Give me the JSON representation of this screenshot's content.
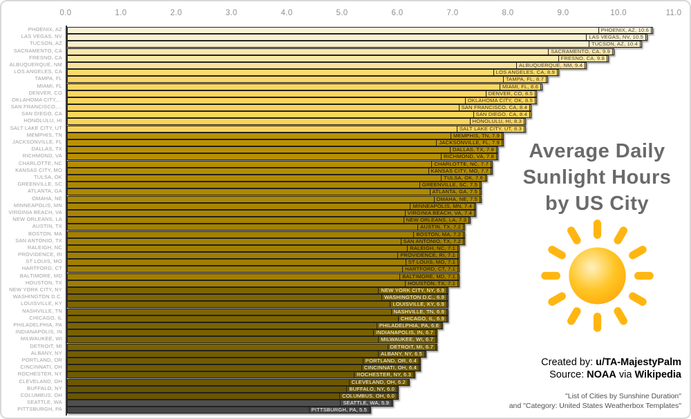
{
  "title": {
    "lines": [
      "Average Daily",
      "Sunlight Hours",
      "by US City"
    ],
    "color": "#6a6a6a"
  },
  "credits": {
    "created_by_label": "Created by: ",
    "created_by_value": "u/TA-MajestyPalm",
    "source_label": "Source: ",
    "source_noaa": "NOAA",
    "via": " via ",
    "wikipedia": "Wikipedia",
    "footnote_line1": "\"List of Cities by Sunshine Duration\"",
    "footnote_line2": "and \"Category: United States Weatherbox Templates\""
  },
  "icons": {
    "sun": {
      "name": "sun-icon",
      "ray_color": "#ffb612",
      "core_light": "#fff0bf",
      "core_mid": "#ffc525",
      "core_edge": "#ffa70a"
    }
  },
  "chart_data": {
    "type": "bar",
    "orientation": "horizontal",
    "title": "Average Daily Sunlight Hours by US City",
    "xlabel": "",
    "ylabel": "",
    "xlim": [
      0,
      11
    ],
    "grid": false,
    "x_ticks": [
      "0.0",
      "1.0",
      "2.0",
      "3.0",
      "4.0",
      "5.0",
      "6.0",
      "7.0",
      "8.0",
      "9.0",
      "10.0",
      "11.0"
    ],
    "bar_border_color": "#222222",
    "cities": [
      {
        "city": "PHOENIX, AZ",
        "value": 10.6,
        "color": "#f9f0d6",
        "text": "#4a4636"
      },
      {
        "city": "LAS VEGAS, NV",
        "value": 10.5,
        "color": "#f9efd1",
        "text": "#4a4636"
      },
      {
        "city": "TUCSON, AZ",
        "value": 10.4,
        "color": "#f8edca",
        "text": "#4a4636"
      },
      {
        "city": "SACRAMENTO, CA",
        "value": 9.9,
        "color": "#fae8ab",
        "text": "#4a4636"
      },
      {
        "city": "FRESNO, CA",
        "value": 9.8,
        "color": "#fae7a6",
        "text": "#4a4636"
      },
      {
        "city": "ALBUQUERQUE, NM",
        "value": 9.4,
        "color": "#fae199",
        "text": "#4a4636"
      },
      {
        "city": "LOS ANGELES, CA",
        "value": 8.9,
        "color": "#fcd96c",
        "text": "#3e3a26"
      },
      {
        "city": "TAMPA, FL",
        "value": 8.7,
        "color": "#fbd765",
        "text": "#3e3a26"
      },
      {
        "city": "MIAMI, FL",
        "value": 8.6,
        "color": "#fbd661",
        "text": "#3e3a26"
      },
      {
        "city": "DENVER, CO",
        "value": 8.5,
        "color": "#fbd55e",
        "text": "#3e3a26"
      },
      {
        "city": "OKLAHOMA CITY, OK",
        "axis": "OKLAHOMA CITY,…",
        "value": 8.5,
        "color": "#fbd55e",
        "text": "#3e3a26"
      },
      {
        "city": "SAN FRANCISCO, CA",
        "axis": "SAN FRANCISCO,…",
        "value": 8.4,
        "color": "#fbd45b",
        "text": "#3e3a26"
      },
      {
        "city": "SAN DIEGO, CA",
        "value": 8.4,
        "color": "#fbd45b",
        "text": "#3e3a26"
      },
      {
        "city": "HONOLULU, HI",
        "value": 8.3,
        "color": "#fbd358",
        "text": "#3e3a26"
      },
      {
        "city": "SALT LAKE CITY, UT",
        "value": 8.3,
        "color": "#fbd358",
        "text": "#3e3a26"
      },
      {
        "city": "MEMPHIS, TN",
        "value": 7.9,
        "color": "#bb9202",
        "text": "#181200"
      },
      {
        "city": "JACKSONVILLE, FL",
        "value": 7.9,
        "color": "#bb9202",
        "text": "#181200"
      },
      {
        "city": "DALLAS, TX",
        "value": 7.8,
        "color": "#b78f00",
        "text": "#181200"
      },
      {
        "city": "RICHMOND, VA",
        "value": 7.8,
        "color": "#b78f00",
        "text": "#181200"
      },
      {
        "city": "CHARLOTTE, NC",
        "value": 7.7,
        "color": "#b48d00",
        "text": "#181200"
      },
      {
        "city": "KANSAS CITY, MO",
        "value": 7.7,
        "color": "#b48d00",
        "text": "#181200"
      },
      {
        "city": "TULSA, OK",
        "value": 7.6,
        "color": "#b08a00",
        "text": "#181200"
      },
      {
        "city": "GREENVILLE, SC",
        "value": 7.5,
        "color": "#ad8800",
        "text": "#181200"
      },
      {
        "city": "ATLANTA, GA",
        "value": 7.5,
        "color": "#ad8800",
        "text": "#181200"
      },
      {
        "city": "OMAHA, NE",
        "value": 7.5,
        "color": "#ad8800",
        "text": "#181200"
      },
      {
        "city": "MINNEAPOLIS, MN",
        "value": 7.4,
        "color": "#aa8500",
        "text": "#181200"
      },
      {
        "city": "VIRGINIA BEACH, VA",
        "value": 7.4,
        "color": "#aa8500",
        "text": "#181200"
      },
      {
        "city": "NEW ORLEANS, LA",
        "value": 7.3,
        "color": "#a68300",
        "text": "#181200"
      },
      {
        "city": "AUSTIN, TX",
        "value": 7.2,
        "color": "#a38100",
        "text": "#181200"
      },
      {
        "city": "BOSTON, MA",
        "value": 7.2,
        "color": "#a38100",
        "text": "#181200"
      },
      {
        "city": "SAN ANTONIO, TX",
        "value": 7.2,
        "color": "#a38100",
        "text": "#181200"
      },
      {
        "city": "RALEIGH, NC",
        "value": 7.1,
        "color": "#a07e00",
        "text": "#181200"
      },
      {
        "city": "PROVIDENCE, RI",
        "value": 7.1,
        "color": "#a07e00",
        "text": "#181200"
      },
      {
        "city": "ST LOUIS, MO",
        "value": 7.1,
        "color": "#a07e00",
        "text": "#181200"
      },
      {
        "city": "HARTFORD, CT",
        "value": 7.1,
        "color": "#a07e00",
        "text": "#181200"
      },
      {
        "city": "BALTIMORE, MD",
        "value": 7.1,
        "color": "#a07e00",
        "text": "#181200"
      },
      {
        "city": "HOUSTON, TX",
        "value": 7.1,
        "color": "#a07e00",
        "text": "#181200"
      },
      {
        "city": "NEW YORK CITY, NY",
        "value": 6.9,
        "color": "#7e6500",
        "text": "#ffffff"
      },
      {
        "city": "WASHINGTON D.C.",
        "value": 6.9,
        "color": "#7e6500",
        "text": "#ffffff"
      },
      {
        "city": "LOUISVILLE, KY",
        "value": 6.9,
        "color": "#7e6500",
        "text": "#ffffff"
      },
      {
        "city": "NASHVILLE, TN",
        "value": 6.9,
        "color": "#7e6500",
        "text": "#ffffff"
      },
      {
        "city": "CHICAGO, IL",
        "value": 6.9,
        "color": "#7e6500",
        "text": "#ffffff"
      },
      {
        "city": "PHILADELPHIA, PA",
        "value": 6.8,
        "color": "#7b6300",
        "text": "#ffffff"
      },
      {
        "city": "INDIANAPOLIS, IN",
        "value": 6.7,
        "color": "#786100",
        "text": "#ffffff"
      },
      {
        "city": "MILWAUKEE, WI",
        "value": 6.7,
        "color": "#786100",
        "text": "#ffffff"
      },
      {
        "city": "DETROIT, MI",
        "value": 6.7,
        "color": "#786100",
        "text": "#ffffff"
      },
      {
        "city": "ALBANY, NY",
        "value": 6.5,
        "color": "#735d00",
        "text": "#ffffff"
      },
      {
        "city": "PORTLAND, OR",
        "value": 6.4,
        "color": "#715c00",
        "text": "#ffffff"
      },
      {
        "city": "CINCINNATI, OH",
        "value": 6.4,
        "color": "#715c00",
        "text": "#ffffff"
      },
      {
        "city": "ROCHESTER, NY",
        "value": 6.3,
        "color": "#6e5a00",
        "text": "#ffffff"
      },
      {
        "city": "CLEVELAND, OH",
        "value": 6.2,
        "color": "#6c5800",
        "text": "#ffffff"
      },
      {
        "city": "BUFFALO, NY",
        "value": 6.0,
        "color": "#685500",
        "text": "#ffffff"
      },
      {
        "city": "COLUMBUS, OH",
        "value": 6.0,
        "color": "#685500",
        "text": "#ffffff"
      },
      {
        "city": "SEATTLE, WA",
        "value": 5.9,
        "color": "#4f4f4f",
        "text": "#ffffff"
      },
      {
        "city": "PITTSBURGH, PA",
        "value": 5.5,
        "color": "#474747",
        "text": "#ffffff"
      }
    ]
  }
}
